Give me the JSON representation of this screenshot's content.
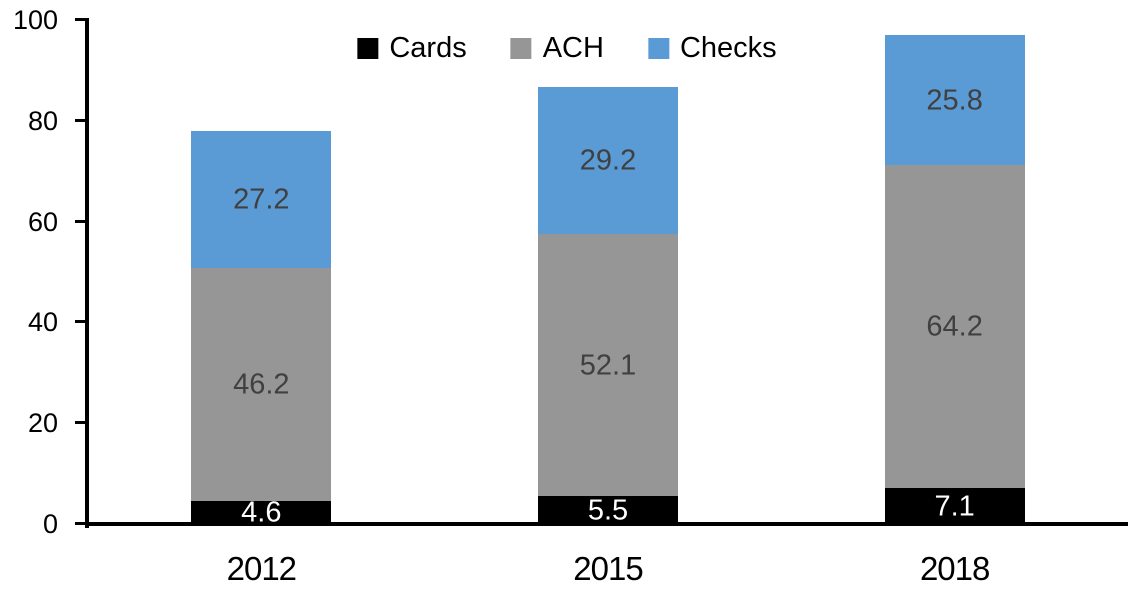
{
  "chart_data": {
    "type": "bar",
    "stacked": true,
    "title": "",
    "xlabel": "",
    "ylabel": "",
    "categories": [
      "2012",
      "2015",
      "2018"
    ],
    "series": [
      {
        "name": "Cards",
        "color": "#000000",
        "label_color": "#FFFFFF",
        "values": [
          4.6,
          5.5,
          7.1
        ]
      },
      {
        "name": "ACH",
        "color": "#969696",
        "label_color": "#404040",
        "values": [
          46.2,
          52.1,
          64.2
        ]
      },
      {
        "name": "Checks",
        "color": "#5B9BD5",
        "label_color": "#404040",
        "values": [
          27.2,
          29.2,
          25.8
        ]
      }
    ],
    "totals": [
      78.0,
      86.8,
      97.1
    ],
    "ylim": [
      0,
      100
    ],
    "yticks": [
      0,
      20,
      40,
      60,
      80,
      100
    ],
    "grid": false,
    "legend_position": "top-center",
    "axis_color": "#000000",
    "tick_label_color": "#000000"
  }
}
